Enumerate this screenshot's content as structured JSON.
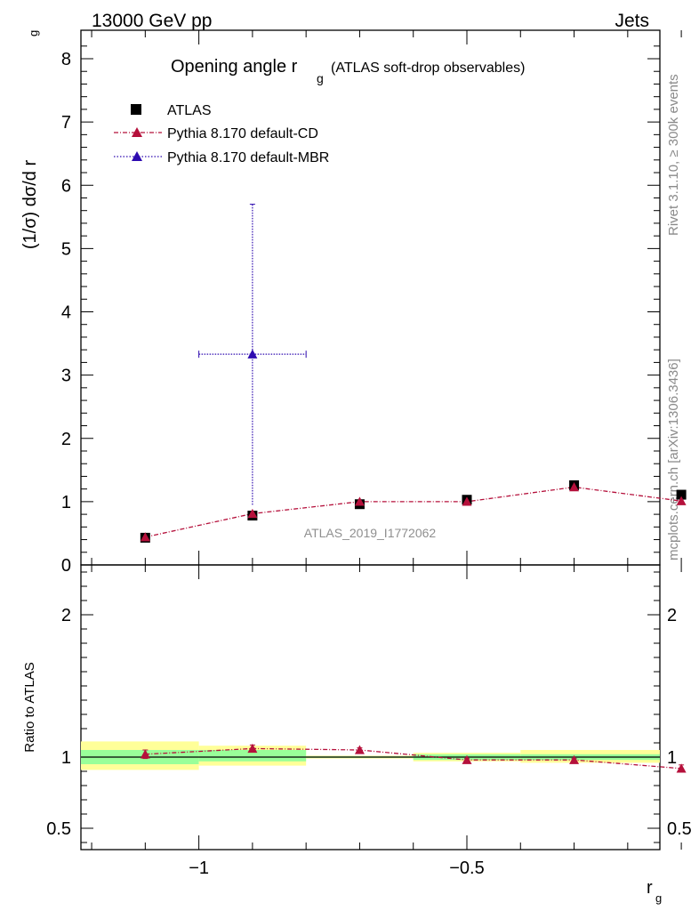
{
  "header": {
    "left": "13000 GeV pp",
    "right": "Jets"
  },
  "side": {
    "version": "Rivet 3.1.10, ≥ 300k events",
    "site": "mcplots.cern.ch [arXiv:1306.3436]"
  },
  "chart_data": {
    "type": "line",
    "title": "Opening angle r",
    "title_sub": "g",
    "title_extra": "(ATLAS soft-drop observables)",
    "analysis_id": "ATLAS_2019_I1772062",
    "xlabel": "r",
    "xlabel_sub": "g",
    "ylabel": "(1/σ) dσ/d r",
    "ylabel_sub": "g",
    "ratio_ylabel": "Ratio to ATLAS",
    "xlim": [
      -1.22,
      -0.14
    ],
    "ylim": [
      0,
      8.45
    ],
    "ratio_ylim": [
      0.35,
      2.35
    ],
    "x_ticks": [
      {
        "v": -1,
        "label": "−1"
      },
      {
        "v": -0.5,
        "label": "−0.5"
      }
    ],
    "y_ticks": [
      {
        "v": 0,
        "label": "0"
      },
      {
        "v": 1,
        "label": "1"
      },
      {
        "v": 2,
        "label": "2"
      },
      {
        "v": 3,
        "label": "3"
      },
      {
        "v": 4,
        "label": "4"
      },
      {
        "v": 5,
        "label": "5"
      },
      {
        "v": 6,
        "label": "6"
      },
      {
        "v": 7,
        "label": "7"
      },
      {
        "v": 8,
        "label": "8"
      }
    ],
    "ratio_ticks": [
      {
        "v": 0.5,
        "label": "0.5"
      },
      {
        "v": 1,
        "label": "1"
      },
      {
        "v": 2,
        "label": "2"
      }
    ],
    "legend": [
      {
        "name": "ATLAS",
        "marker": "square",
        "color": "#000000"
      },
      {
        "name": "Pythia 8.170 default-CD",
        "marker": "triangle",
        "color": "#b5103b"
      },
      {
        "name": "Pythia 8.170 default-MBR",
        "marker": "triangle",
        "color": "#2e0bb0"
      }
    ],
    "series": [
      {
        "name": "ATLAS",
        "x": [
          -1.1,
          -0.9,
          -0.7,
          -0.5,
          -0.3,
          -0.1
        ],
        "y": [
          0.43,
          0.78,
          0.96,
          1.03,
          1.26,
          1.11
        ]
      },
      {
        "name": "Pythia 8.170 default-CD",
        "x": [
          -1.1,
          -0.9,
          -0.7,
          -0.5,
          -0.3,
          -0.1
        ],
        "y": [
          0.44,
          0.81,
          1.0,
          1.0,
          1.23,
          1.01
        ]
      },
      {
        "name": "Pythia 8.170 default-MBR",
        "x": [
          -0.9
        ],
        "y": [
          3.33
        ],
        "x_err": [
          [
            -1.0,
            -0.8
          ]
        ],
        "y_err": [
          [
            0.95,
            5.7
          ]
        ]
      }
    ],
    "ratio": {
      "bands": [
        {
          "x": [
            -1.22,
            -1.0
          ],
          "inner": [
            0.95,
            1.05
          ],
          "outer": [
            0.91,
            1.11
          ]
        },
        {
          "x": [
            -1.0,
            -0.8
          ],
          "inner": [
            0.97,
            1.05
          ],
          "outer": [
            0.94,
            1.08
          ]
        },
        {
          "x": [
            -0.8,
            -0.6
          ],
          "inner": [
            0.995,
            1.005
          ],
          "outer": [
            0.99,
            1.01
          ]
        },
        {
          "x": [
            -0.6,
            -0.4
          ],
          "inner": [
            0.98,
            1.02
          ],
          "outer": [
            0.97,
            1.03
          ]
        },
        {
          "x": [
            -0.4,
            -0.14
          ],
          "inner": [
            0.98,
            1.02
          ],
          "outer": [
            0.96,
            1.05
          ]
        }
      ],
      "cd_x": [
        -1.1,
        -0.9,
        -0.7,
        -0.5,
        -0.3,
        -0.1
      ],
      "cd_y": [
        1.02,
        1.06,
        1.05,
        0.98,
        0.98,
        0.92
      ],
      "cd_err": [
        0.03,
        0.025,
        0.015,
        0.01,
        0.01,
        0.025
      ]
    }
  }
}
